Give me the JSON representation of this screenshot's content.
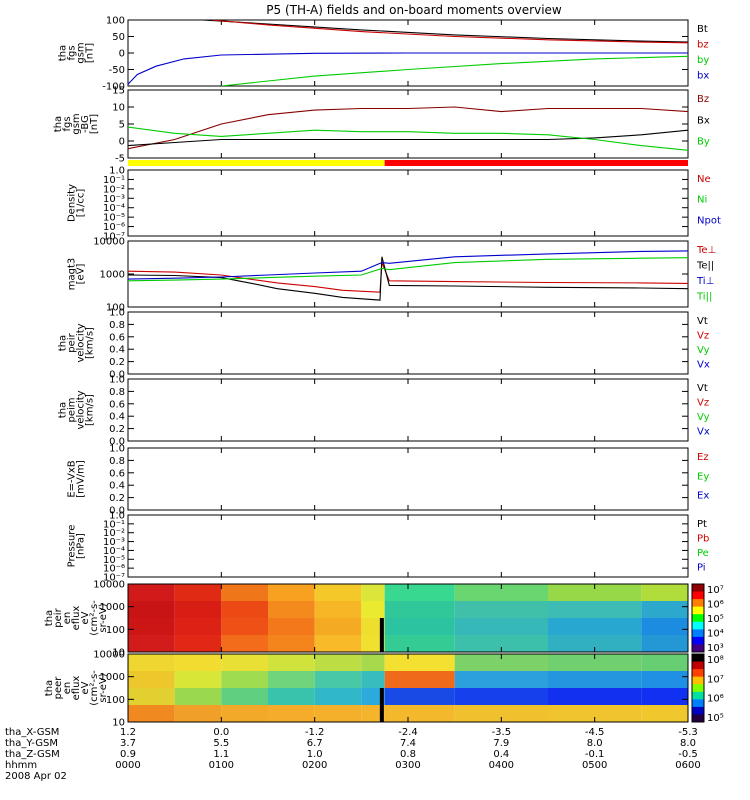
{
  "title": "P5 (TH-A) fields and on-board moments overview",
  "chart_data": {
    "type": "multi-panel",
    "time_axis": {
      "range": [
        "0000",
        "0600"
      ],
      "date": "2008 Apr 02",
      "ticks": [
        {
          "hhmm": "0000",
          "x_gsm": "1.2",
          "y_gsm": "3.7",
          "z_gsm": "0.9"
        },
        {
          "hhmm": "0100",
          "x_gsm": "0.0",
          "y_gsm": "5.5",
          "z_gsm": "1.1"
        },
        {
          "hhmm": "0200",
          "x_gsm": "-1.2",
          "y_gsm": "6.7",
          "z_gsm": "1.0"
        },
        {
          "hhmm": "0300",
          "x_gsm": "-2.4",
          "y_gsm": "7.4",
          "z_gsm": "0.8"
        },
        {
          "hhmm": "0400",
          "x_gsm": "-3.5",
          "y_gsm": "7.9",
          "z_gsm": "0.4"
        },
        {
          "hhmm": "0500",
          "x_gsm": "-4.5",
          "y_gsm": "8.0",
          "z_gsm": "-0.1"
        },
        {
          "hhmm": "0600",
          "x_gsm": "-5.3",
          "y_gsm": "8.0",
          "z_gsm": "-0.5"
        }
      ],
      "row_labels": [
        "tha_X-GSM",
        "tha_Y-GSM",
        "tha_Z-GSM",
        "hhmm"
      ]
    },
    "panels": [
      {
        "id": "fgs",
        "type": "line",
        "ylabel": [
          "tha",
          "fgs",
          "gsm",
          "[nT]"
        ],
        "ylim": [
          -100,
          100
        ],
        "yticks": [
          "100",
          "50",
          "0",
          "-50",
          "-100"
        ],
        "legend": [
          {
            "name": "Bt",
            "color": "#000000"
          },
          {
            "name": "bz",
            "color": "#cc0000"
          },
          {
            "name": "by",
            "color": "#00cc00"
          },
          {
            "name": "bx",
            "color": "#0000cc"
          }
        ],
        "series": [
          {
            "name": "Bt",
            "color": "#000000",
            "x": [
              0.8,
              1.5,
              2.5,
              3.5,
              4.5,
              5.5,
              6.0
            ],
            "y": [
              100,
              88,
              70,
              55,
              44,
              36,
              33
            ]
          },
          {
            "name": "bz",
            "color": "#cc0000",
            "x": [
              0.9,
              1.5,
              2.5,
              3.5,
              4.5,
              5.5,
              6.0
            ],
            "y": [
              100,
              85,
              65,
              50,
              40,
              33,
              31
            ]
          },
          {
            "name": "by",
            "color": "#00cc00",
            "x": [
              1.0,
              1.5,
              2.0,
              3.0,
              4.0,
              5.0,
              6.0
            ],
            "y": [
              -100,
              -85,
              -70,
              -50,
              -32,
              -18,
              -10
            ]
          },
          {
            "name": "bx",
            "color": "#0000cc",
            "x": [
              0.0,
              0.1,
              0.3,
              0.6,
              1.0,
              2.0,
              3.0,
              6.0
            ],
            "y": [
              -95,
              -65,
              -40,
              -18,
              -6,
              -1,
              0,
              0
            ]
          }
        ]
      },
      {
        "id": "fgs_dsl",
        "type": "line",
        "ylabel": [
          "tha",
          "fgs",
          "gsm",
          "-BG",
          "[nT]"
        ],
        "ylim": [
          -7,
          15
        ],
        "yticks": [
          "15",
          "10",
          "5",
          "0",
          "-5"
        ],
        "legend": [
          {
            "name": "Bz",
            "color": "#880000"
          },
          {
            "name": "Bx",
            "color": "#000000"
          },
          {
            "name": "By",
            "color": "#00cc00"
          }
        ],
        "series": [
          {
            "name": "Bz",
            "color": "#880000",
            "x": [
              0.0,
              0.5,
              1.0,
              1.5,
              2.0,
              2.5,
              3.0,
              3.5,
              4.0,
              4.5,
              5.0,
              5.5,
              6.0
            ],
            "y": [
              -4,
              -1,
              4,
              7,
              8.5,
              9,
              9,
              9.5,
              8,
              9,
              9,
              9,
              8
            ]
          },
          {
            "name": "Bx",
            "color": "#000000",
            "x": [
              0.0,
              0.5,
              1.0,
              1.5,
              2.0,
              2.5,
              3.0,
              3.5,
              4.0,
              4.5,
              5.0,
              5.5,
              6.0
            ],
            "y": [
              -3,
              -2,
              -1,
              -1,
              -1,
              -1,
              -1,
              -1,
              -1,
              -1,
              -0.5,
              0.5,
              2
            ]
          },
          {
            "name": "By",
            "color": "#00cc00",
            "x": [
              0.0,
              0.5,
              1.0,
              1.5,
              2.0,
              2.5,
              3.0,
              3.5,
              4.0,
              4.5,
              5.0,
              5.5,
              6.0
            ],
            "y": [
              3,
              1,
              0,
              1,
              2,
              1.5,
              1.5,
              1,
              1,
              0.5,
              -1,
              -3,
              -4.5
            ]
          }
        ]
      },
      {
        "id": "mode_bar",
        "type": "bar",
        "segments": [
          {
            "from": 0.0,
            "to": 2.75,
            "color": "#ffff00"
          },
          {
            "from": 2.75,
            "to": 6.0,
            "color": "#ff0000"
          }
        ]
      },
      {
        "id": "density",
        "type": "line",
        "scale": "log",
        "ylabel": [
          "Density",
          "[1/cc]"
        ],
        "ylim": [
          1e-07,
          1
        ],
        "yticks": [
          "1.0",
          "10⁻¹",
          "10⁻²",
          "10⁻³",
          "10⁻⁴",
          "10⁻⁵",
          "10⁻⁶",
          "10⁻⁷"
        ],
        "legend": [
          {
            "name": "Ne",
            "color": "#cc0000"
          },
          {
            "name": "Ni",
            "color": "#00cc00"
          },
          {
            "name": "Npot",
            "color": "#0000cc"
          }
        ],
        "series": []
      },
      {
        "id": "temp",
        "type": "line",
        "scale": "log",
        "ylabel": [
          "magt3",
          "[eV]"
        ],
        "ylim": [
          30,
          10000
        ],
        "yticks": [
          "10000",
          "1000",
          "100"
        ],
        "legend": [
          {
            "name": "Te⊥",
            "color": "#cc0000"
          },
          {
            "name": "Te||",
            "color": "#000000"
          },
          {
            "name": "Ti⊥",
            "color": "#0000cc"
          },
          {
            "name": "Ti||",
            "color": "#00cc00"
          }
        ],
        "series": [
          {
            "name": "Te⊥",
            "color": "#cc0000",
            "x": [
              0.0,
              0.5,
              1.0,
              1.3,
              1.6,
              2.0,
              2.3,
              2.7,
              2.72,
              2.8,
              3.5,
              4.5,
              5.5,
              6.0
            ],
            "y": [
              700,
              650,
              500,
              350,
              250,
              180,
              130,
              110,
              1500,
              300,
              280,
              260,
              250,
              240
            ]
          },
          {
            "name": "Te||",
            "color": "#000000",
            "x": [
              0.0,
              0.5,
              1.0,
              1.3,
              1.6,
              2.0,
              2.3,
              2.7,
              2.72,
              2.8,
              3.5,
              4.5,
              5.5,
              6.0
            ],
            "y": [
              500,
              480,
              400,
              250,
              150,
              100,
              70,
              55,
              2500,
              200,
              190,
              170,
              160,
              150
            ]
          },
          {
            "name": "Ti⊥",
            "color": "#0000cc",
            "x": [
              0.0,
              0.5,
              1.0,
              1.5,
              2.0,
              2.5,
              2.72,
              2.8,
              3.5,
              4.5,
              5.5,
              6.0
            ],
            "y": [
              350,
              380,
              420,
              500,
              600,
              700,
              1500,
              1400,
              2500,
              3200,
              4000,
              4200
            ]
          },
          {
            "name": "Ti||",
            "color": "#00cc00",
            "x": [
              0.0,
              0.5,
              1.0,
              1.5,
              2.0,
              2.5,
              2.72,
              2.8,
              3.5,
              4.5,
              5.5,
              6.0
            ],
            "y": [
              300,
              320,
              350,
              400,
              450,
              500,
              900,
              800,
              1500,
              2000,
              2200,
              2300
            ]
          }
        ]
      },
      {
        "id": "peir_vel",
        "type": "line",
        "ylabel": [
          "tha",
          "peir",
          "velocity",
          "[km/s]"
        ],
        "ylim": [
          0,
          1
        ],
        "yticks": [
          "1.0",
          "0.8",
          "0.6",
          "0.4",
          "0.2",
          "0.0"
        ],
        "legend": [
          {
            "name": "Vt",
            "color": "#000000"
          },
          {
            "name": "Vz",
            "color": "#cc0000"
          },
          {
            "name": "Vy",
            "color": "#00cc00"
          },
          {
            "name": "Vx",
            "color": "#0000cc"
          }
        ],
        "series": []
      },
      {
        "id": "peim_vel",
        "type": "line",
        "ylabel": [
          "tha",
          "peim",
          "velocity",
          "[km/s]"
        ],
        "ylim": [
          0,
          1
        ],
        "yticks": [
          "1.0",
          "0.8",
          "0.6",
          "0.4",
          "0.2",
          "0.0"
        ],
        "legend": [
          {
            "name": "Vt",
            "color": "#000000"
          },
          {
            "name": "Vz",
            "color": "#cc0000"
          },
          {
            "name": "Vy",
            "color": "#00cc00"
          },
          {
            "name": "Vx",
            "color": "#0000cc"
          }
        ],
        "series": []
      },
      {
        "id": "efield",
        "type": "line",
        "ylabel": [
          "E=-VxB",
          "[mV/m]"
        ],
        "ylim": [
          0,
          1
        ],
        "yticks": [
          "1.0",
          "0.8",
          "0.6",
          "0.4",
          "0.2",
          "0.0"
        ],
        "legend": [
          {
            "name": "Ez",
            "color": "#cc0000"
          },
          {
            "name": "Ey",
            "color": "#00cc00"
          },
          {
            "name": "Ex",
            "color": "#0000cc"
          }
        ],
        "series": []
      },
      {
        "id": "pressure",
        "type": "line",
        "scale": "log",
        "ylabel": [
          "Pressure",
          "[nPa]"
        ],
        "ylim": [
          1e-07,
          1
        ],
        "yticks": [
          "1.0",
          "10⁻¹",
          "10⁻²",
          "10⁻³",
          "10⁻⁴",
          "10⁻⁵",
          "10⁻⁶",
          "10⁻⁷"
        ],
        "legend": [
          {
            "name": "Pt",
            "color": "#000000"
          },
          {
            "name": "Pb",
            "color": "#cc0000"
          },
          {
            "name": "Pe",
            "color": "#00cc00"
          },
          {
            "name": "Pi",
            "color": "#0000cc"
          }
        ],
        "series": []
      },
      {
        "id": "ion_spec",
        "type": "heatmap",
        "ylabel": [
          "tha",
          "peir",
          "en",
          "eflux",
          "eV",
          "(cm²-s-",
          "sr-eV)"
        ],
        "ylim": [
          10,
          20000
        ],
        "yticks": [
          "10000",
          "1000",
          "100",
          "10"
        ],
        "colorbar": {
          "range": [
            1000,
            10000000
          ],
          "ticks": [
            "10⁷",
            "10⁶",
            "10⁵",
            "10⁴",
            "10³"
          ]
        },
        "columns": [
          {
            "x": 0.0,
            "colors": [
              "#d21a1a",
              "#c81414",
              "#cc1616",
              "#d21c1c"
            ]
          },
          {
            "x": 0.5,
            "colors": [
              "#e02a14",
              "#d81e14",
              "#dc2214",
              "#e02814"
            ]
          },
          {
            "x": 1.0,
            "colors": [
              "#f0761a",
              "#ec4a14",
              "#ee5016",
              "#f26c1c"
            ]
          },
          {
            "x": 1.5,
            "colors": [
              "#f8a020",
              "#f48a1e",
              "#f2781a",
              "#f4841c"
            ]
          },
          {
            "x": 2.0,
            "colors": [
              "#f4c828",
              "#f6b626",
              "#f4aa22",
              "#f8ba28"
            ]
          },
          {
            "x": 2.5,
            "colors": [
              "#dce63a",
              "#eaea30",
              "#eede2e",
              "#f0e030"
            ]
          },
          {
            "x": 2.75,
            "colors": [
              "#38d890",
              "#30c898",
              "#2cc4a0",
              "#34cc94"
            ]
          },
          {
            "x": 3.5,
            "colors": [
              "#6ad670",
              "#40c0a8",
              "#36b8b8",
              "#3cc0ac"
            ]
          },
          {
            "x": 4.5,
            "colors": [
              "#96d848",
              "#3cbcb4",
              "#28a8d0",
              "#30b0c0"
            ]
          },
          {
            "x": 5.5,
            "colors": [
              "#b0dc3c",
              "#2ca8cc",
              "#1c8ce0",
              "#2498d4"
            ]
          },
          {
            "x": 6.0,
            "colors": [
              "#c4de34",
              "#28a0d4",
              "#1880e6",
              "#2090da"
            ]
          }
        ]
      },
      {
        "id": "elec_spec",
        "type": "heatmap",
        "ylabel": [
          "tha",
          "peer",
          "en",
          "eflux",
          "eV",
          "(cm²-s-",
          "sr-eV)"
        ],
        "ylim": [
          10,
          20000
        ],
        "yticks": [
          "10000",
          "1000",
          "100",
          "10"
        ],
        "colorbar": {
          "range": [
            100000,
            100000000
          ],
          "ticks": [
            "10⁸",
            "10⁷",
            "10⁶",
            "10⁵"
          ]
        },
        "columns": [
          {
            "x": 0.0,
            "colors": [
              "#f0d630",
              "#ecc82c",
              "#e2d030",
              "#f08a20"
            ]
          },
          {
            "x": 0.5,
            "colors": [
              "#f2dc30",
              "#d8e638",
              "#9ad850",
              "#f0a028"
            ]
          },
          {
            "x": 1.0,
            "colors": [
              "#e8e034",
              "#a0dc50",
              "#60d080",
              "#f2a828"
            ]
          },
          {
            "x": 1.5,
            "colors": [
              "#d0e23c",
              "#70d47c",
              "#38c4ac",
              "#f4ac2a"
            ]
          },
          {
            "x": 2.0,
            "colors": [
              "#bcde44",
              "#48c8a4",
              "#30b8c8",
              "#f4b02a"
            ]
          },
          {
            "x": 2.5,
            "colors": [
              "#a6da4c",
              "#38bcbc",
              "#2caadc",
              "#f4b42c"
            ]
          },
          {
            "x": 2.75,
            "colors": [
              "#f4e030",
              "#f06a1c",
              "#1a4ae6",
              "#f4b82c"
            ]
          },
          {
            "x": 3.5,
            "colors": [
              "#7cd268",
              "#2ca0dc",
              "#1640ec",
              "#f0c02e"
            ]
          },
          {
            "x": 4.5,
            "colors": [
              "#70d070",
              "#2496e0",
              "#1230f0",
              "#f0c42e"
            ]
          },
          {
            "x": 5.5,
            "colors": [
              "#68ce74",
              "#2090e4",
              "#1030f2",
              "#f0c82e"
            ]
          },
          {
            "x": 6.0,
            "colors": [
              "#64cc78",
              "#1e8ce6",
              "#0e2cf4",
              "#f0cc30"
            ]
          }
        ]
      }
    ]
  }
}
